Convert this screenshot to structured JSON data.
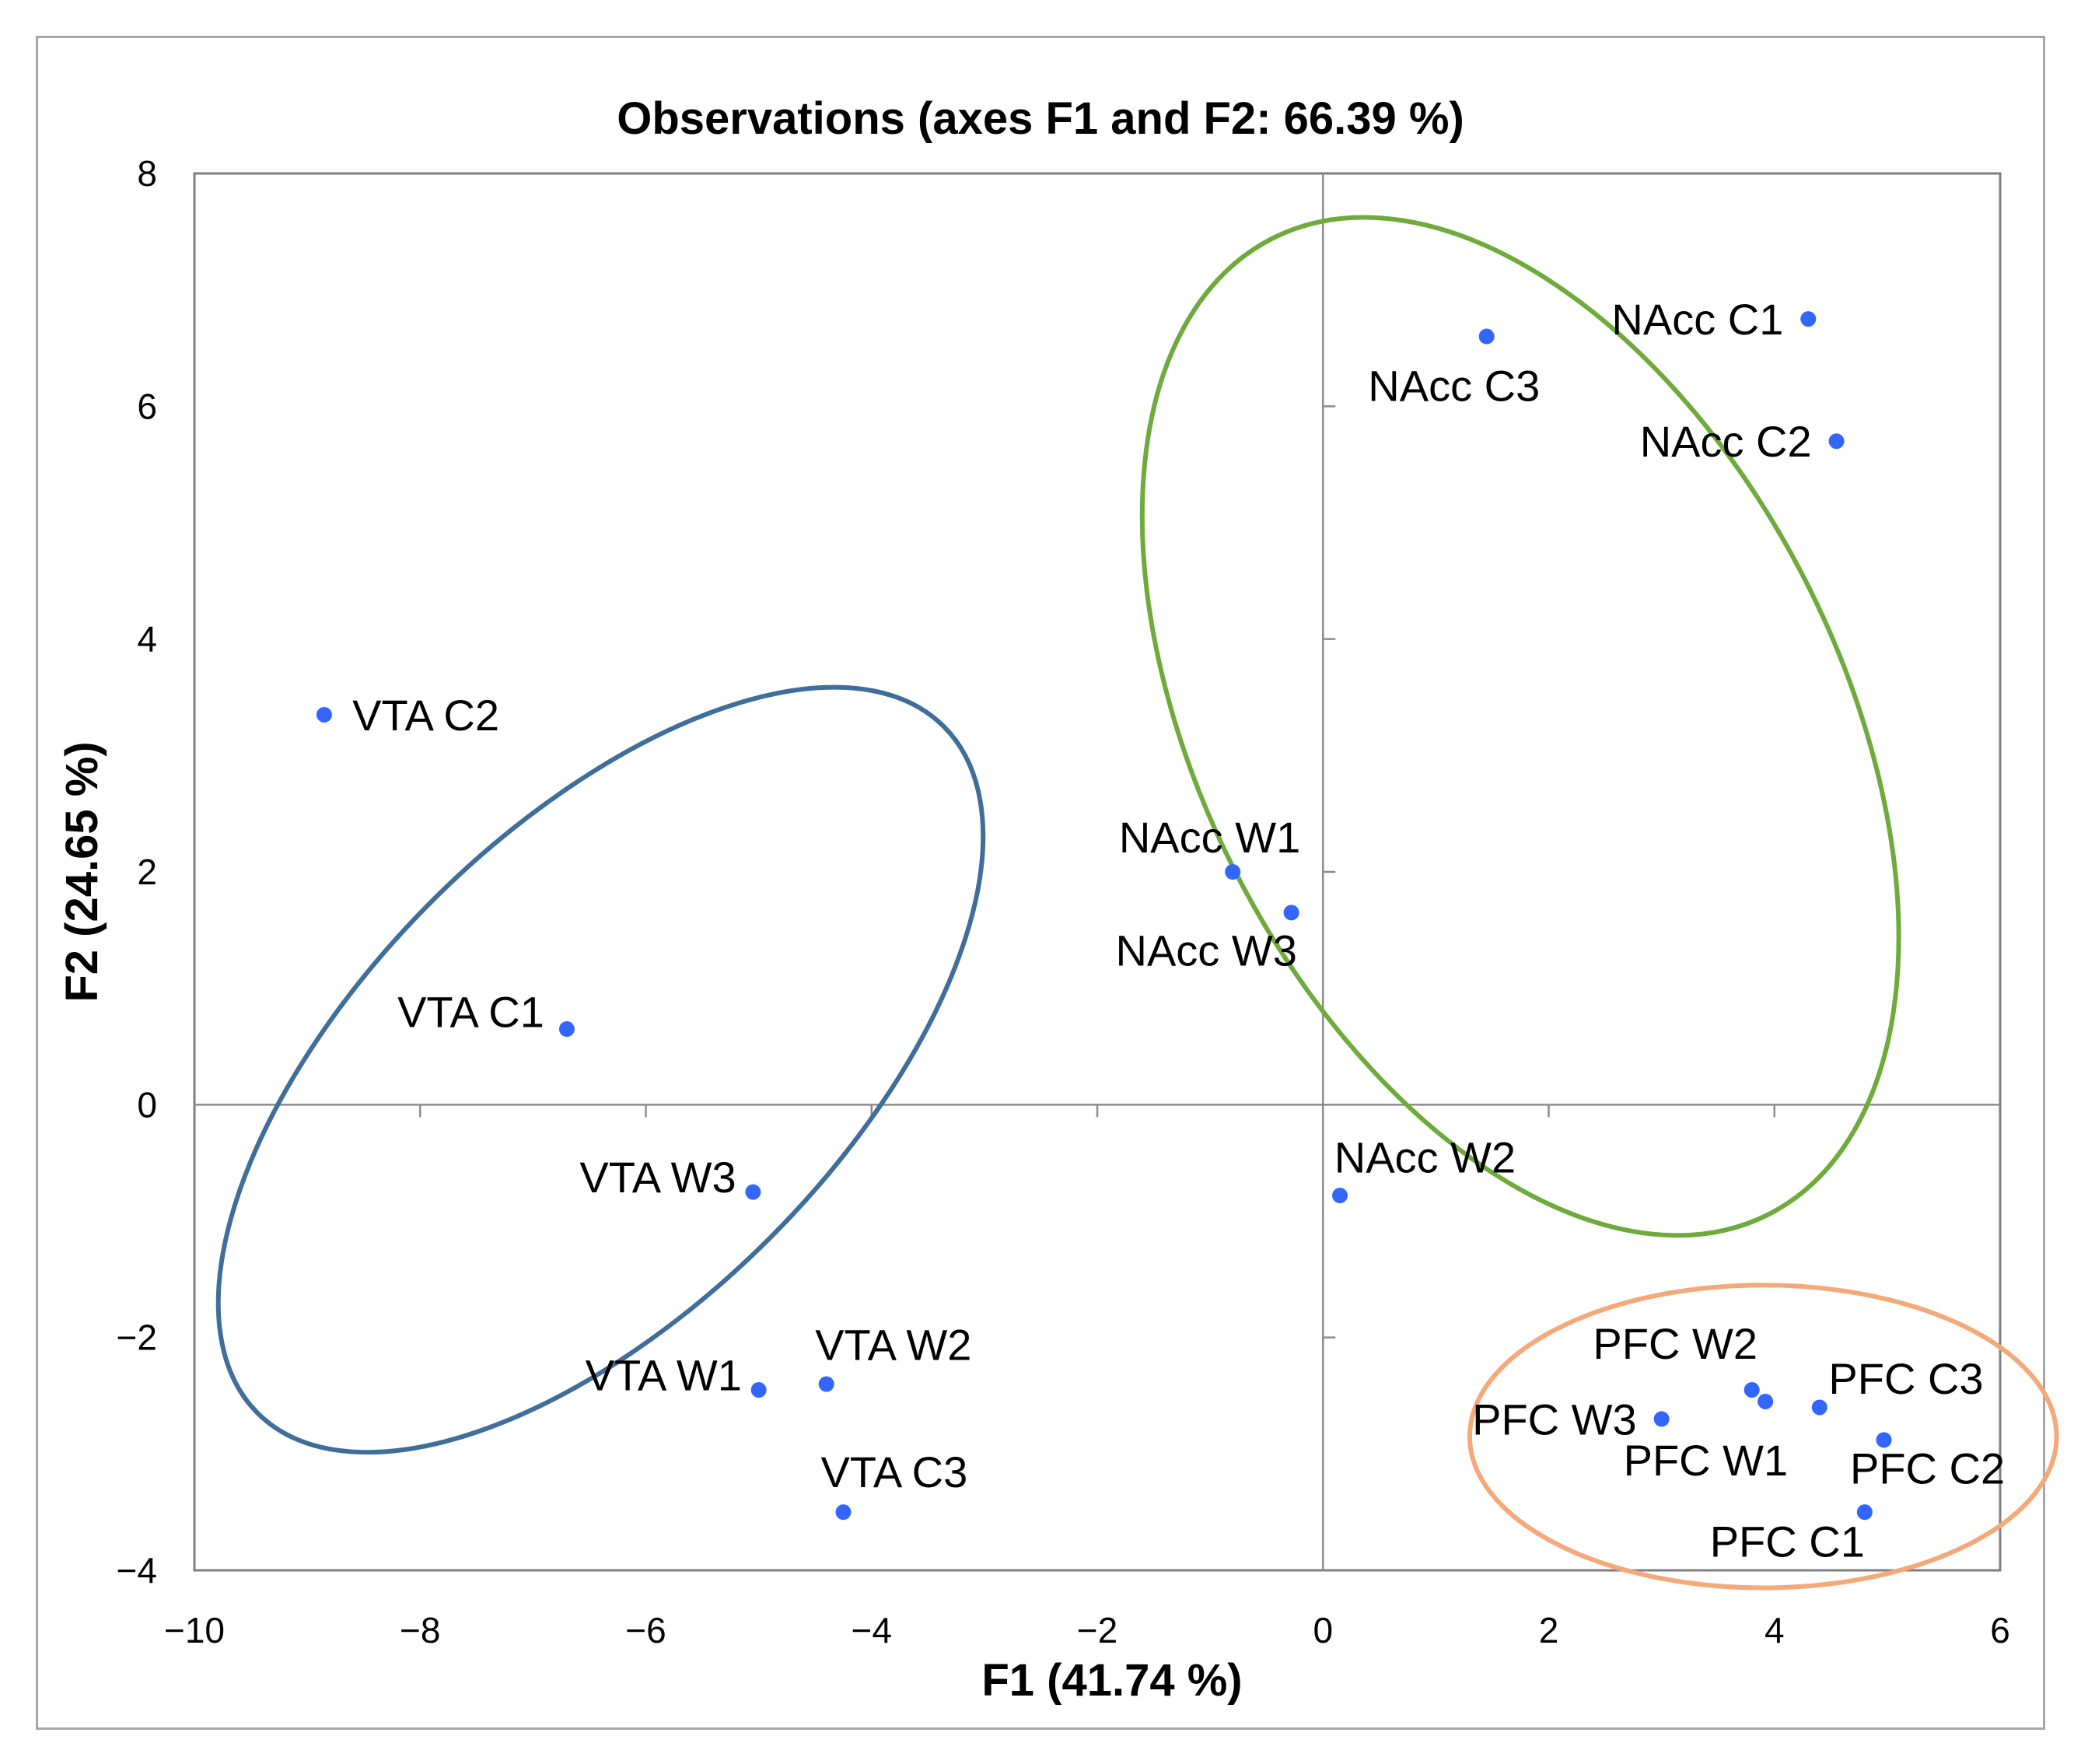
{
  "chart_data": {
    "type": "scatter",
    "title": "Observations (axes F1 and F2: 66.39 %)",
    "xlabel": "F1 (41.74 %)",
    "ylabel": "F2 (24.65 %)",
    "xlim": [
      -10,
      6
    ],
    "ylim": [
      -4,
      8
    ],
    "xticks": [
      -10,
      -8,
      -6,
      -4,
      -2,
      0,
      2,
      4,
      6
    ],
    "yticks": [
      -4,
      -2,
      0,
      2,
      4,
      6,
      8
    ],
    "xtick_labels": [
      "−10",
      "−8",
      "−6",
      "−4",
      "−2",
      "0",
      "2",
      "4",
      "6"
    ],
    "ytick_labels": [
      "−4",
      "−2",
      "0",
      "2",
      "4",
      "6",
      "8"
    ],
    "grid": false,
    "marker_color": "#3366ff",
    "points": [
      {
        "label": "VTA C2",
        "x": -8.85,
        "y": 3.35,
        "anchor": "start",
        "dx": 0.25,
        "dy": 0.0
      },
      {
        "label": "VTA C1",
        "x": -6.7,
        "y": 0.65,
        "anchor": "end",
        "dx": -0.2,
        "dy": 0.15
      },
      {
        "label": "VTA W3",
        "x": -5.05,
        "y": -0.75,
        "anchor": "end",
        "dx": -0.15,
        "dy": 0.13
      },
      {
        "label": "VTA W1",
        "x": -5.0,
        "y": -2.45,
        "anchor": "end",
        "dx": -0.15,
        "dy": 0.13
      },
      {
        "label": "VTA W2",
        "x": -4.4,
        "y": -2.4,
        "anchor": "start",
        "dx": -0.1,
        "dy": 0.34
      },
      {
        "label": "VTA C3",
        "x": -4.25,
        "y": -3.5,
        "anchor": "start",
        "dx": -0.2,
        "dy": 0.35
      },
      {
        "label": "NAcc C3",
        "x": 1.45,
        "y": 6.6,
        "anchor": "start",
        "dx": -1.05,
        "dy": -0.42
      },
      {
        "label": "NAcc C1",
        "x": 4.3,
        "y": 6.75,
        "anchor": "end",
        "dx": -0.22,
        "dy": 0.0
      },
      {
        "label": "NAcc C2",
        "x": 4.55,
        "y": 5.7,
        "anchor": "end",
        "dx": -0.22,
        "dy": 0.0
      },
      {
        "label": "NAcc W1",
        "x": -0.8,
        "y": 2.0,
        "anchor": "end",
        "dx": 0.6,
        "dy": 0.3
      },
      {
        "label": "NAcc W3",
        "x": -0.28,
        "y": 1.65,
        "anchor": "end",
        "dx": 0.05,
        "dy": -0.32
      },
      {
        "label": "NAcc W2",
        "x": 0.15,
        "y": -0.78,
        "anchor": "start",
        "dx": -0.05,
        "dy": 0.33
      },
      {
        "label": "PFC W2",
        "x": 3.8,
        "y": -2.45,
        "anchor": "end",
        "dx": 0.05,
        "dy": 0.4
      },
      {
        "label": "PFC W3",
        "x": 3.0,
        "y": -2.7,
        "anchor": "end",
        "dx": -0.22,
        "dy": 0.0
      },
      {
        "label": "PFC W1",
        "x": 3.92,
        "y": -2.55,
        "anchor": "end",
        "dx": 0.2,
        "dy": -0.5
      },
      {
        "label": "PFC C3",
        "x": 4.4,
        "y": -2.6,
        "anchor": "start",
        "dx": 0.08,
        "dy": 0.25
      },
      {
        "label": "PFC C2",
        "x": 4.97,
        "y": -2.88,
        "anchor": "start",
        "dx": -0.3,
        "dy": -0.24
      },
      {
        "label": "PFC C1",
        "x": 4.8,
        "y": -3.5,
        "anchor": "end",
        "dx": 0.0,
        "dy": -0.25
      }
    ],
    "ellipses": [
      {
        "group": "VTA",
        "color": "#3f6e9b",
        "cx": -6.4,
        "cy": 0.3,
        "rx": 4.3,
        "ry": 2.05,
        "angle_deg": -45
      },
      {
        "group": "NAcc",
        "color": "#6fab3c",
        "cx": 1.75,
        "cy": 3.25,
        "rx": 4.85,
        "ry": 2.75,
        "angle_deg": 63
      },
      {
        "group": "PFC",
        "color": "#f4a97a",
        "cx": 3.9,
        "cy": -2.85,
        "rx": 2.6,
        "ry": 1.3,
        "angle_deg": 0
      }
    ]
  }
}
